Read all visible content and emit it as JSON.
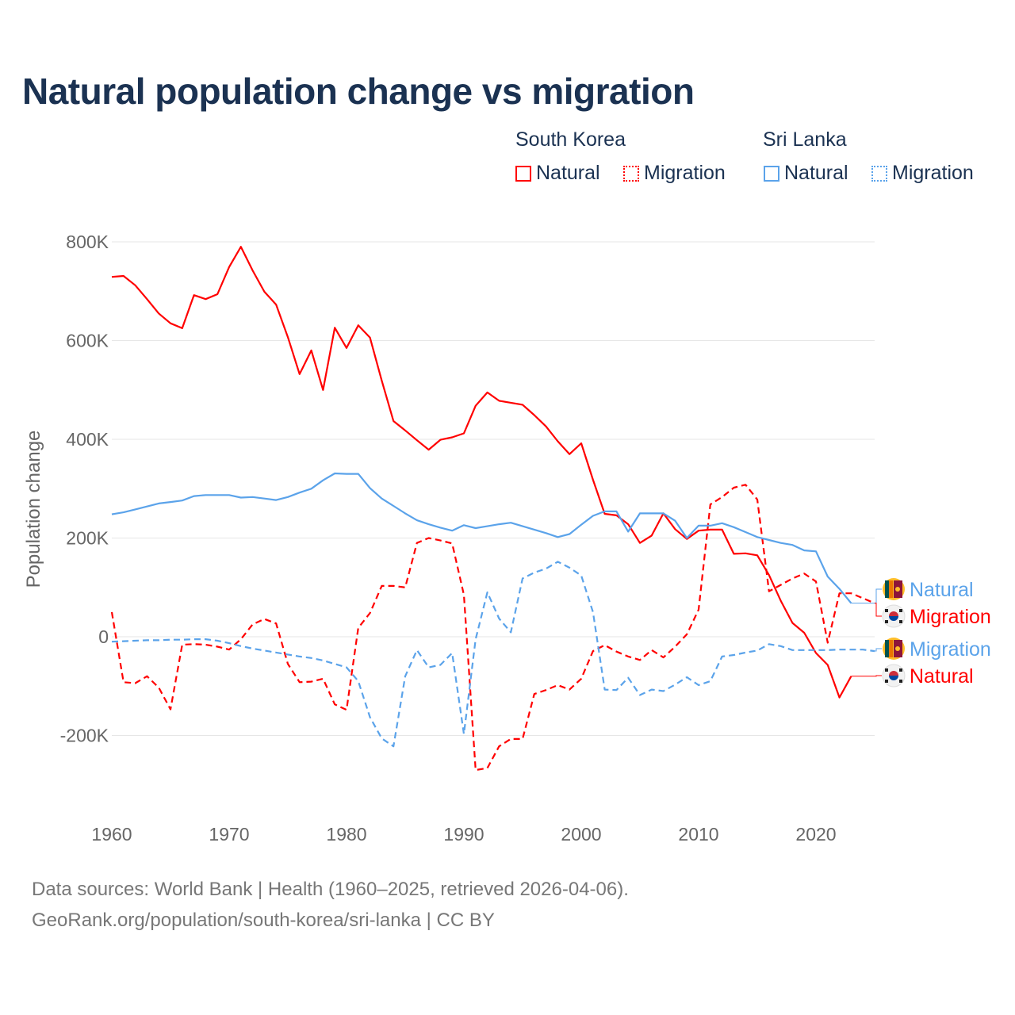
{
  "chart_data": {
    "type": "line",
    "title": "Natural population change vs migration",
    "ylabel": "Population change",
    "xlabel": "",
    "xlim": [
      1960,
      2025
    ],
    "ylim": [
      -300000,
      850000
    ],
    "x_ticks": [
      1960,
      1970,
      1980,
      1990,
      2000,
      2010,
      2020
    ],
    "x_tick_labels": [
      "1960",
      "1970",
      "1980",
      "1990",
      "2000",
      "2010",
      "2020"
    ],
    "y_ticks": [
      -200000,
      0,
      200000,
      400000,
      600000,
      800000
    ],
    "y_tick_labels": [
      "-200K",
      "0",
      "200K",
      "400K",
      "600K",
      "800K"
    ],
    "grid": true,
    "legend_groups": [
      {
        "country": "South Korea",
        "items": [
          "Natural",
          "Migration"
        ]
      },
      {
        "country": "Sri Lanka",
        "items": [
          "Natural",
          "Migration"
        ]
      }
    ],
    "series": [
      {
        "name": "South Korea Natural",
        "label": "Natural",
        "color": "#ff0000",
        "dash": false,
        "start": 1960,
        "values": [
          729,
          731,
          712,
          684,
          655,
          635,
          625,
          692,
          684,
          694,
          749,
          790,
          742,
          699,
          673,
          607,
          532,
          580,
          500,
          626,
          585,
          631,
          606,
          519,
          437,
          418,
          398,
          379,
          399,
          404,
          412,
          468,
          495,
          478,
          474,
          470,
          449,
          426,
          396,
          370,
          392,
          318,
          249,
          246,
          228,
          190,
          205,
          250,
          218,
          198,
          215,
          217,
          217,
          168,
          169,
          165,
          125,
          73,
          28,
          8,
          -33,
          -57,
          -123,
          -80
        ]
      },
      {
        "name": "South Korea Migration",
        "label": "Migration",
        "color": "#ff0000",
        "dash": true,
        "start": 1960,
        "values": [
          50,
          -92,
          -94,
          -80,
          -103,
          -147,
          -16,
          -15,
          -16,
          -20,
          -26,
          -5,
          25,
          36,
          27,
          -55,
          -92,
          -91,
          -85,
          -137,
          -148,
          18,
          48,
          103,
          103,
          100,
          190,
          200,
          195,
          189,
          85,
          -270,
          -266,
          -222,
          -207,
          -207,
          -116,
          -108,
          -98,
          -107,
          -85,
          -29,
          -17,
          -30,
          -40,
          -47,
          -27,
          -42,
          -20,
          5,
          55,
          268,
          283,
          302,
          308,
          278,
          92,
          105,
          118,
          128,
          112,
          -12,
          88,
          88,
          78,
          68
        ]
      },
      {
        "name": "Sri Lanka Natural",
        "label": "Natural",
        "color": "#5ba3ea",
        "dash": false,
        "start": 1960,
        "values": [
          248,
          252,
          258,
          264,
          270,
          273,
          276,
          285,
          287,
          287,
          287,
          282,
          283,
          280,
          277,
          283,
          292,
          300,
          317,
          331,
          330,
          330,
          301,
          280,
          265,
          250,
          236,
          228,
          221,
          215,
          226,
          220,
          224,
          228,
          231,
          224,
          217,
          210,
          202,
          208,
          227,
          245,
          254,
          254,
          213,
          250,
          250,
          250,
          235,
          200,
          225,
          225,
          230,
          222,
          212,
          202,
          196,
          190,
          186,
          175,
          173,
          122,
          97,
          68
        ]
      },
      {
        "name": "Sri Lanka Migration",
        "label": "Migration",
        "color": "#5ba3ea",
        "dash": true,
        "start": 1960,
        "values": [
          -10,
          -9,
          -8,
          -7,
          -7,
          -6,
          -6,
          -5,
          -5,
          -8,
          -13,
          -19,
          -24,
          -28,
          -32,
          -36,
          -40,
          -43,
          -48,
          -55,
          -62,
          -90,
          -163,
          -206,
          -222,
          -80,
          -27,
          -62,
          -57,
          -33,
          -197,
          -5,
          90,
          37,
          9,
          118,
          130,
          138,
          152,
          140,
          124,
          50,
          -107,
          -108,
          -83,
          -118,
          -107,
          -110,
          -97,
          -82,
          -98,
          -90,
          -40,
          -37,
          -32,
          -28,
          -15,
          -19,
          -27,
          -27,
          -27,
          -27,
          -26,
          -26,
          -26,
          -29
        ]
      }
    ],
    "value_unit": "thousands",
    "end_labels": [
      {
        "series": 2,
        "text": "Natural",
        "flag": "sri-lanka"
      },
      {
        "series": 1,
        "text": "Migration",
        "flag": "south-korea"
      },
      {
        "series": 3,
        "text": "Migration",
        "flag": "sri-lanka"
      },
      {
        "series": 0,
        "text": "Natural",
        "flag": "south-korea"
      }
    ]
  },
  "legend": {
    "sk": "South Korea",
    "sl": "Sri Lanka",
    "natural": "Natural",
    "migration": "Migration"
  },
  "footer": {
    "line1": "Data sources: World Bank | Health (1960–2025, retrieved 2026-04-06).",
    "line2": "GeoRank.org/population/south-korea/sri-lanka | CC BY"
  }
}
